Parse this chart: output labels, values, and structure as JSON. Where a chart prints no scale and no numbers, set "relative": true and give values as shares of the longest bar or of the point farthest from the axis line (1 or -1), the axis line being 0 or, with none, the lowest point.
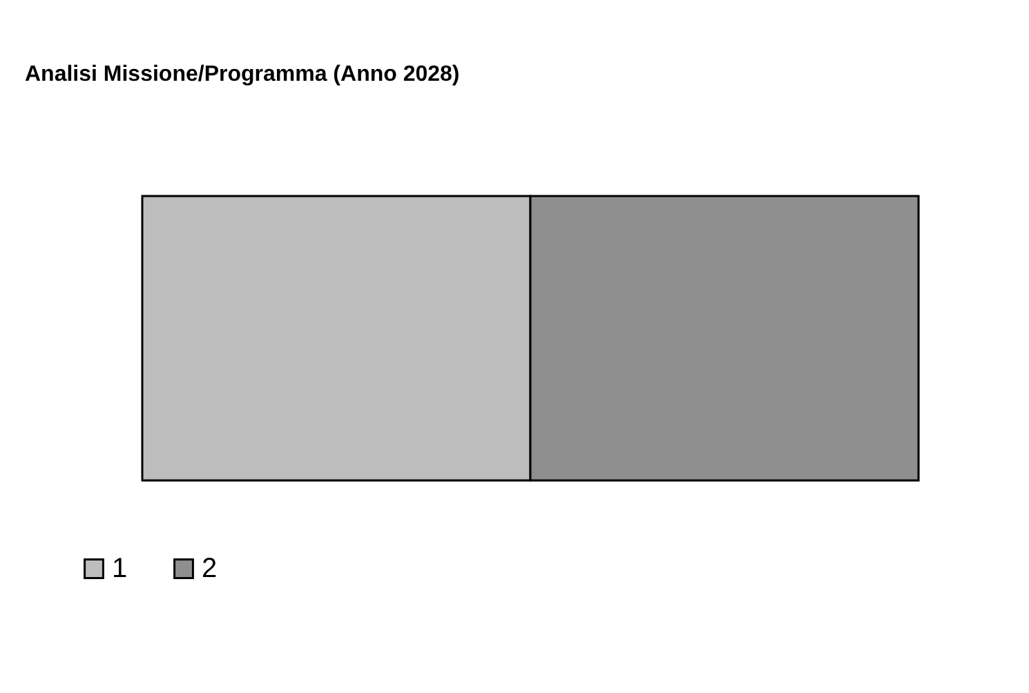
{
  "chart_data": {
    "type": "bar",
    "title": "Analisi Missione/Programma (Anno 2028)",
    "orientation": "horizontal",
    "stacked": true,
    "relative": true,
    "categories": [
      null
    ],
    "legend": "bottom left",
    "series": [
      {
        "name": "1",
        "color": "#bdbdbd",
        "values": [
          0.5
        ]
      },
      {
        "name": "2",
        "color": "#8f8f8f",
        "values": [
          0.5
        ]
      }
    ]
  }
}
